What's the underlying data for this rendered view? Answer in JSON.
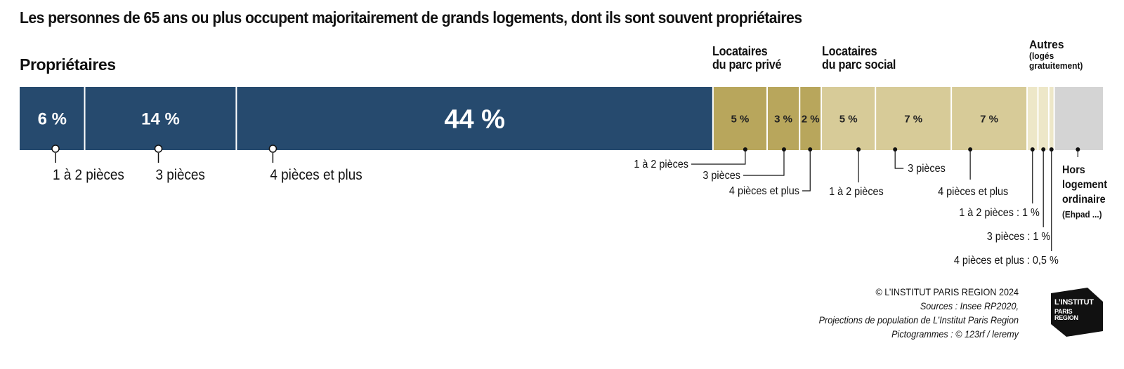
{
  "title": "Les personnes de 65 ans ou plus occupent majoritairement de grands logements, dont ils sont souvent propriétaires",
  "groups": {
    "proprietaires": "Propriétaires",
    "prive_l1": "Locataires",
    "prive_l2": "du parc privé",
    "social_l1": "Locataires",
    "social_l2": "du parc social",
    "autres_l1": "Autres",
    "autres_l2": "(logés",
    "autres_l3": "gratuitement)"
  },
  "colors": {
    "proprietaires": "#264a6e",
    "prive": "#b8a65c",
    "social": "#d7cb98",
    "autres": "#ede7c8",
    "hors": "#d4d4d4"
  },
  "chart_data": {
    "type": "bar",
    "orientation": "horizontal-stacked",
    "unit": "%",
    "segments": [
      {
        "group": "proprietaires",
        "label": "1 à 2 pièces",
        "value": 6,
        "value_label": "6 %"
      },
      {
        "group": "proprietaires",
        "label": "3 pièces",
        "value": 14,
        "value_label": "14 %"
      },
      {
        "group": "proprietaires",
        "label": "4 pièces et plus",
        "value": 44,
        "value_label": "44 %"
      },
      {
        "group": "prive",
        "label": "1 à 2 pièces",
        "value": 5,
        "value_label": "5 %"
      },
      {
        "group": "prive",
        "label": "3 pièces",
        "value": 3,
        "value_label": "3 %"
      },
      {
        "group": "prive",
        "label": "4 pièces et plus",
        "value": 2,
        "value_label": "2 %"
      },
      {
        "group": "social",
        "label": "1 à 2 pièces",
        "value": 5,
        "value_label": "5 %"
      },
      {
        "group": "social",
        "label": "3 pièces",
        "value": 7,
        "value_label": "7 %"
      },
      {
        "group": "social",
        "label": "4 pièces et plus",
        "value": 7,
        "value_label": "7 %"
      },
      {
        "group": "autres",
        "label": "1 à 2 pièces : 1 %",
        "value": 1,
        "value_label": ""
      },
      {
        "group": "autres",
        "label": "3 pièces : 1 %",
        "value": 1,
        "value_label": ""
      },
      {
        "group": "autres",
        "label": "4 pièces et plus : 0,5 %",
        "value": 0.5,
        "value_label": ""
      },
      {
        "group": "hors",
        "label": "Hors logement ordinaire (Ehpad ...)",
        "value": 4.5,
        "value_label": ""
      }
    ]
  },
  "hors": {
    "l1": "Hors",
    "l2": "logement",
    "l3": "ordinaire",
    "l4": "(Ehpad ...)"
  },
  "footer": {
    "copyright": "© L’INSTITUT PARIS REGION 2024",
    "source1": "Sources : Insee RP2020,",
    "source2": "Projections de population de L’Institut Paris Region",
    "picto": "Pictogrammes : © 123rf / leremy"
  },
  "logo": {
    "l1": "L’INSTITUT",
    "l2": "PARIS",
    "l3": "REGION"
  }
}
